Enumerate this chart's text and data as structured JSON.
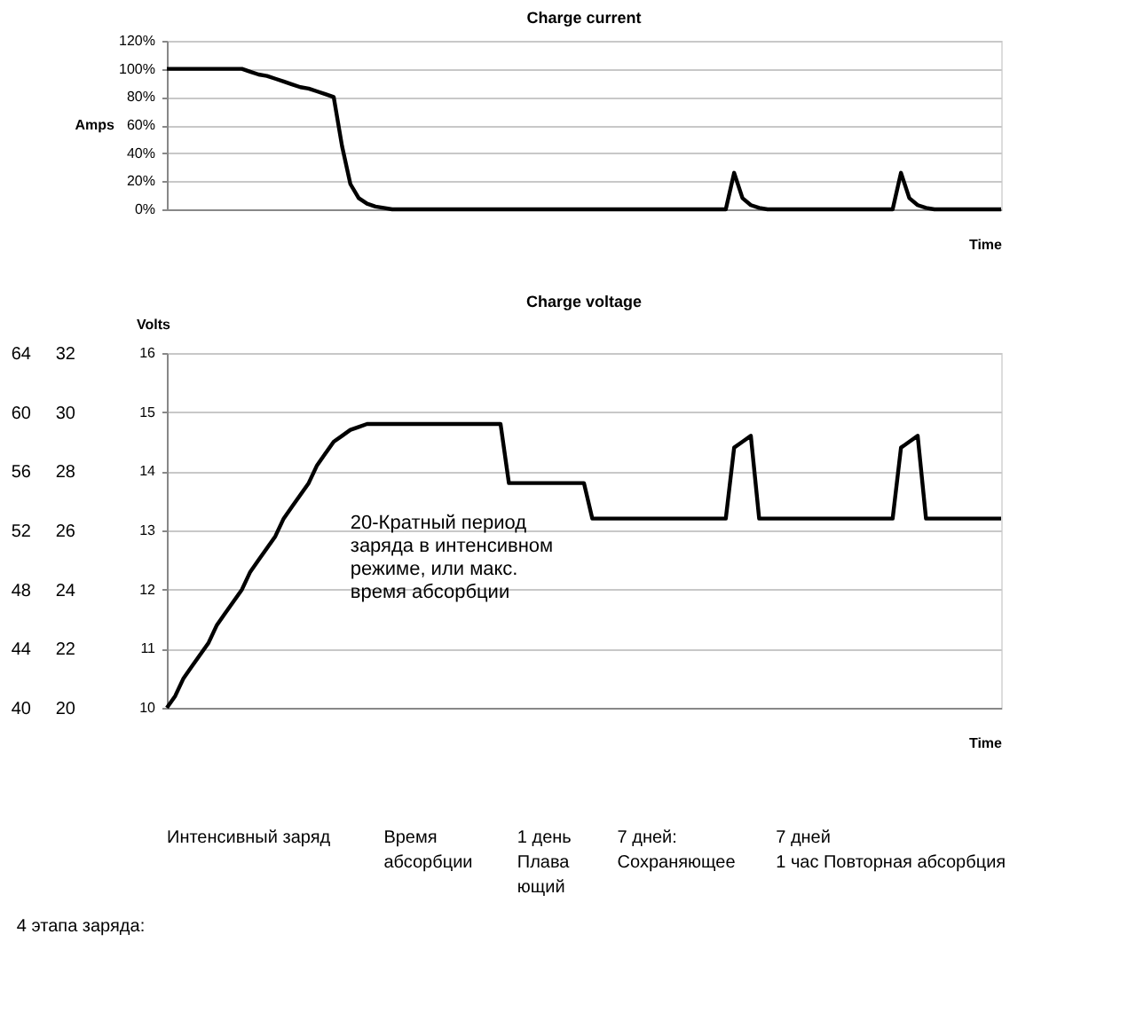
{
  "chart_data": [
    {
      "type": "line",
      "title": "Charge current",
      "ylabel": "Amps",
      "xlabel": "Time",
      "color": "#000000",
      "grid": "y",
      "tick_labels": "y",
      "marker": "none",
      "line_style": "solid",
      "categories": [
        null,
        null,
        null,
        null,
        null,
        null,
        null,
        null,
        null,
        null,
        null,
        null,
        null,
        null,
        null,
        null,
        null,
        null,
        null,
        null,
        null,
        null,
        null,
        null,
        null,
        null,
        null,
        null,
        null,
        null,
        null,
        null,
        null,
        null,
        null,
        null,
        null,
        null,
        null,
        null,
        null,
        null,
        null,
        null,
        null,
        null,
        null,
        null,
        null,
        null,
        null,
        null,
        null,
        null,
        null,
        null,
        null,
        null,
        null,
        null,
        null,
        null,
        null,
        null,
        null,
        null,
        null,
        null,
        null,
        null,
        null,
        null,
        null,
        null,
        null,
        null,
        null,
        null,
        null,
        null,
        null,
        null,
        null,
        null,
        null,
        null,
        null,
        null,
        null,
        null,
        null,
        null,
        null,
        null,
        null,
        null,
        null,
        null,
        null,
        null,
        null
      ],
      "values": [
        100,
        100,
        100,
        100,
        100,
        100,
        100,
        100,
        100,
        100,
        98,
        96,
        95,
        93,
        91,
        89,
        87,
        86,
        84,
        82,
        80,
        45,
        18,
        8,
        4,
        2,
        1,
        0,
        0,
        0,
        0,
        0,
        0,
        0,
        0,
        0,
        0,
        0,
        0,
        0,
        0,
        0,
        0,
        0,
        0,
        0,
        0,
        0,
        0,
        0,
        0,
        0,
        0,
        0,
        0,
        0,
        0,
        0,
        0,
        0,
        0,
        0,
        0,
        0,
        0,
        0,
        0,
        0,
        26,
        8,
        3,
        1,
        0,
        0,
        0,
        0,
        0,
        0,
        0,
        0,
        0,
        0,
        0,
        0,
        0,
        0,
        0,
        0,
        26,
        8,
        3,
        1,
        0,
        0,
        0,
        0,
        0,
        0,
        0,
        0,
        0
      ],
      "ylim": [
        0,
        120
      ],
      "yticks": [
        {
          "value": 0,
          "label": "0%"
        },
        {
          "value": 20,
          "label": "20%"
        },
        {
          "value": 40,
          "label": "40%"
        },
        {
          "value": 60,
          "label": "60%"
        },
        {
          "value": 80,
          "label": "80%"
        },
        {
          "value": 100,
          "label": "100%"
        },
        {
          "value": 120,
          "label": "120%"
        }
      ]
    },
    {
      "type": "line",
      "title": "Charge voltage",
      "ylabel": "Volts",
      "xlabel": "Time",
      "color": "#000000",
      "grid": "y",
      "tick_labels": "y",
      "marker": "none",
      "line_style": "solid",
      "categories": [
        null,
        null,
        null,
        null,
        null,
        null,
        null,
        null,
        null,
        null,
        null,
        null,
        null,
        null,
        null,
        null,
        null,
        null,
        null,
        null,
        null,
        null,
        null,
        null,
        null,
        null,
        null,
        null,
        null,
        null,
        null,
        null,
        null,
        null,
        null,
        null,
        null,
        null,
        null,
        null,
        null,
        null,
        null,
        null,
        null,
        null,
        null,
        null,
        null,
        null,
        null,
        null,
        null,
        null,
        null,
        null,
        null,
        null,
        null,
        null,
        null,
        null,
        null,
        null,
        null,
        null,
        null,
        null,
        null,
        null,
        null,
        null,
        null,
        null,
        null,
        null,
        null,
        null,
        null,
        null,
        null,
        null,
        null,
        null,
        null,
        null,
        null,
        null,
        null,
        null,
        null,
        null,
        null,
        null,
        null,
        null,
        null,
        null,
        null,
        null,
        null
      ],
      "values": [
        10,
        10.2,
        10.5,
        10.7,
        10.9,
        11.1,
        11.4,
        11.6,
        11.8,
        12.0,
        12.3,
        12.5,
        12.7,
        12.9,
        13.2,
        13.4,
        13.6,
        13.8,
        14.1,
        14.3,
        14.5,
        14.6,
        14.7,
        14.75,
        14.8,
        14.8,
        14.8,
        14.8,
        14.8,
        14.8,
        14.8,
        14.8,
        14.8,
        14.8,
        14.8,
        14.8,
        14.8,
        14.8,
        14.8,
        14.8,
        14.8,
        13.8,
        13.8,
        13.8,
        13.8,
        13.8,
        13.8,
        13.8,
        13.8,
        13.8,
        13.8,
        13.2,
        13.2,
        13.2,
        13.2,
        13.2,
        13.2,
        13.2,
        13.2,
        13.2,
        13.2,
        13.2,
        13.2,
        13.2,
        13.2,
        13.2,
        13.2,
        13.2,
        14.4,
        14.5,
        14.6,
        13.2,
        13.2,
        13.2,
        13.2,
        13.2,
        13.2,
        13.2,
        13.2,
        13.2,
        13.2,
        13.2,
        13.2,
        13.2,
        13.2,
        13.2,
        13.2,
        13.2,
        14.4,
        14.5,
        14.6,
        13.2,
        13.2,
        13.2,
        13.2,
        13.2,
        13.2,
        13.2,
        13.2,
        13.2,
        13.2
      ],
      "ylim": [
        10,
        16
      ],
      "yticks": [
        10,
        11,
        12,
        13,
        14,
        15,
        16
      ],
      "y2lim": [
        20,
        32
      ],
      "y2ticks": [
        20,
        22,
        24,
        26,
        28,
        30,
        32
      ],
      "y3lim": [
        40,
        64
      ],
      "y3ticks": [
        40,
        44,
        48,
        52,
        56,
        60,
        64
      ],
      "annotations": [
        "20-Кратный период\nзаряда в интенсивном\nрежиме, или макс.\nвремя абсорбции",
        "Интенсивный заряд",
        "Время\nабсорбции",
        "1 день\nПлава\nющий",
        "7 дней:\nСохраняющее",
        "7 дней\n1 час Повторная абсорбция",
        "4 этапа заряда:"
      ]
    }
  ]
}
